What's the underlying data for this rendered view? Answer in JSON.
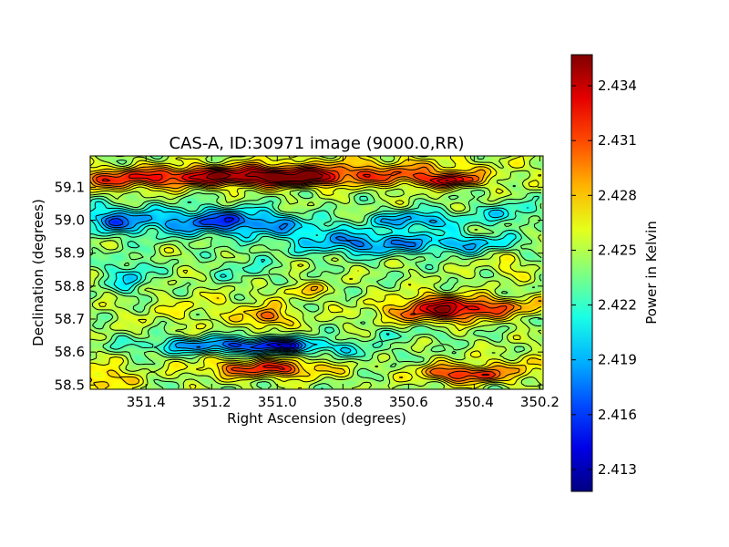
{
  "chart_data": {
    "type": "heatmap",
    "title": "CAS-A, ID:30971 image (9000.0,RR)",
    "xlabel": "Right Ascension (degrees)",
    "ylabel": "Declination (degrees)",
    "colorbar_label": "Power in Kelvin",
    "xlim": [
      351.57,
      350.19
    ],
    "ylim": [
      58.487,
      59.195
    ],
    "x_ticks": [
      351.4,
      351.2,
      351.0,
      350.8,
      350.6,
      350.4,
      350.2
    ],
    "x_tick_labels": [
      "351.4",
      "351.2",
      "351.0",
      "350.8",
      "350.6",
      "350.4",
      "350.2"
    ],
    "y_ticks": [
      58.5,
      58.6,
      58.7,
      58.8,
      58.9,
      59.0,
      59.1
    ],
    "y_tick_labels": [
      "58.5",
      "58.6",
      "58.7",
      "58.8",
      "58.9",
      "59.0",
      "59.1"
    ],
    "colorbar_range": [
      2.4118,
      2.4357
    ],
    "colorbar_ticks": [
      2.413,
      2.416,
      2.419,
      2.422,
      2.425,
      2.428,
      2.431,
      2.434
    ],
    "colorbar_tick_labels": [
      "2.413",
      "2.416",
      "2.419",
      "2.422",
      "2.425",
      "2.428",
      "2.431",
      "2.434"
    ],
    "colormap": "jet",
    "contours": "black contour lines over filled color map",
    "background_level": 2.4245,
    "features": [
      {
        "ra": 351.3,
        "dec": 59.13,
        "sra": 0.22,
        "sdec": 0.022,
        "amp": 0.0055
      },
      {
        "ra": 351.0,
        "dec": 59.135,
        "sra": 0.2,
        "sdec": 0.02,
        "amp": 0.007
      },
      {
        "ra": 350.93,
        "dec": 59.12,
        "sra": 0.08,
        "sdec": 0.015,
        "amp": 0.003
      },
      {
        "ra": 350.55,
        "dec": 59.13,
        "sra": 0.14,
        "sdec": 0.022,
        "amp": 0.004
      },
      {
        "ra": 350.47,
        "dec": 59.12,
        "sra": 0.05,
        "sdec": 0.012,
        "amp": 0.006
      },
      {
        "ra": 351.5,
        "dec": 59.12,
        "sra": 0.1,
        "sdec": 0.025,
        "amp": 0.003
      },
      {
        "ra": 350.75,
        "dec": 59.16,
        "sra": 0.3,
        "sdec": 0.03,
        "amp": 0.0025
      },
      {
        "ra": 351.5,
        "dec": 59.0,
        "sra": 0.08,
        "sdec": 0.03,
        "amp": -0.006
      },
      {
        "ra": 351.22,
        "dec": 58.995,
        "sra": 0.14,
        "sdec": 0.03,
        "amp": -0.0065
      },
      {
        "ra": 351.08,
        "dec": 59.0,
        "sra": 0.1,
        "sdec": 0.025,
        "amp": -0.003
      },
      {
        "ra": 350.92,
        "dec": 58.975,
        "sra": 0.1,
        "sdec": 0.02,
        "amp": -0.003
      },
      {
        "ra": 350.72,
        "dec": 58.93,
        "sra": 0.17,
        "sdec": 0.025,
        "amp": -0.0065
      },
      {
        "ra": 350.58,
        "dec": 59.0,
        "sra": 0.1,
        "sdec": 0.02,
        "amp": -0.006
      },
      {
        "ra": 350.4,
        "dec": 58.93,
        "sra": 0.1,
        "sdec": 0.02,
        "amp": -0.004
      },
      {
        "ra": 350.3,
        "dec": 59.02,
        "sra": 0.07,
        "sdec": 0.025,
        "amp": -0.0035
      },
      {
        "ra": 351.45,
        "dec": 58.83,
        "sra": 0.05,
        "sdec": 0.04,
        "amp": -0.004
      },
      {
        "ra": 351.1,
        "dec": 58.85,
        "sra": 0.07,
        "sdec": 0.03,
        "amp": -0.002
      },
      {
        "ra": 351.2,
        "dec": 58.62,
        "sra": 0.16,
        "sdec": 0.018,
        "amp": -0.006
      },
      {
        "ra": 350.98,
        "dec": 58.62,
        "sra": 0.1,
        "sdec": 0.016,
        "amp": -0.007
      },
      {
        "ra": 350.75,
        "dec": 58.6,
        "sra": 0.08,
        "sdec": 0.02,
        "amp": -0.002
      },
      {
        "ra": 350.5,
        "dec": 58.72,
        "sra": 0.12,
        "sdec": 0.022,
        "amp": 0.007
      },
      {
        "ra": 350.35,
        "dec": 58.74,
        "sra": 0.14,
        "sdec": 0.02,
        "amp": 0.0045
      },
      {
        "ra": 350.52,
        "dec": 58.76,
        "sra": 0.08,
        "sdec": 0.02,
        "amp": 0.003
      },
      {
        "ra": 351.03,
        "dec": 58.705,
        "sra": 0.04,
        "sdec": 0.02,
        "amp": 0.0055
      },
      {
        "ra": 350.92,
        "dec": 58.79,
        "sra": 0.05,
        "sdec": 0.015,
        "amp": 0.003
      },
      {
        "ra": 351.0,
        "dec": 58.55,
        "sra": 0.12,
        "sdec": 0.02,
        "amp": 0.005
      },
      {
        "ra": 351.1,
        "dec": 58.55,
        "sra": 0.12,
        "sdec": 0.02,
        "amp": 0.003
      },
      {
        "ra": 350.48,
        "dec": 58.535,
        "sra": 0.07,
        "sdec": 0.02,
        "amp": 0.006
      },
      {
        "ra": 350.38,
        "dec": 58.53,
        "sra": 0.05,
        "sdec": 0.016,
        "amp": 0.0045
      },
      {
        "ra": 350.25,
        "dec": 58.55,
        "sra": 0.1,
        "sdec": 0.03,
        "amp": 0.003
      },
      {
        "ra": 351.55,
        "dec": 58.52,
        "sra": 0.08,
        "sdec": 0.03,
        "amp": 0.004
      },
      {
        "ra": 351.2,
        "dec": 58.73,
        "sra": 0.2,
        "sdec": 0.04,
        "amp": 0.0015
      },
      {
        "ra": 350.3,
        "dec": 58.86,
        "sra": 0.05,
        "sdec": 0.025,
        "amp": 0.002
      },
      {
        "ra": 350.6,
        "dec": 58.655,
        "sra": 0.1,
        "sdec": 0.015,
        "amp": -0.0015
      }
    ]
  }
}
